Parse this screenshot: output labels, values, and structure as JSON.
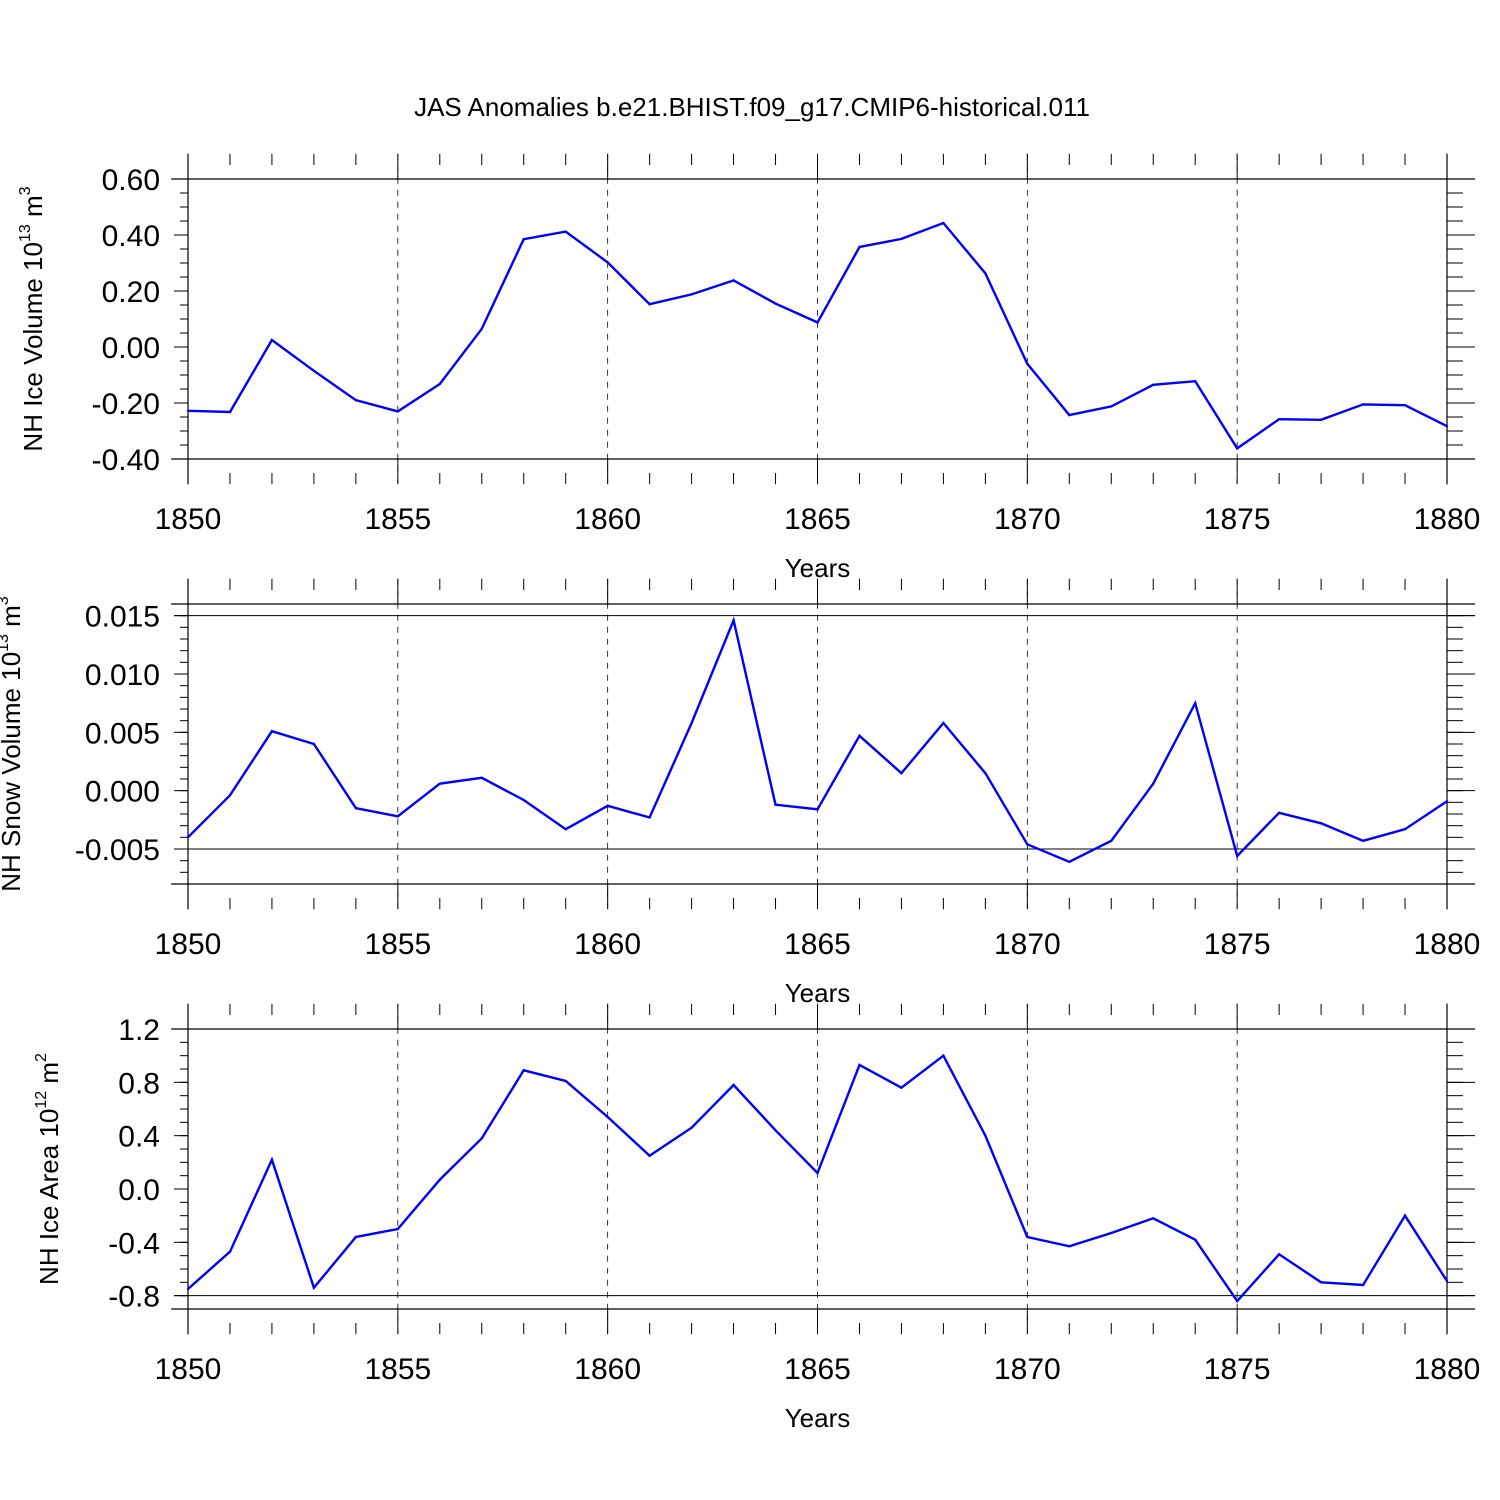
{
  "title": "JAS Anomalies b.e21.BHIST.f09_g17.CMIP6-historical.011",
  "colors": {
    "line": "#0000ff",
    "axis": "#000000",
    "background": "#ffffff"
  },
  "chart_data": [
    {
      "type": "line",
      "title": "JAS Anomalies b.e21.BHIST.f09_g17.CMIP6-historical.011",
      "ylabel": {
        "text": "NH Ice Volume 10",
        "sup": "13",
        "text2": " m",
        "sup2": "3"
      },
      "xlabel": "Years",
      "xlim": [
        1850,
        1880
      ],
      "ylim": [
        -0.4,
        0.6
      ],
      "x_ticks": [
        1850,
        1855,
        1860,
        1865,
        1870,
        1875,
        1880
      ],
      "x_tick_labels": [
        "1850",
        "1855",
        "1860",
        "1865",
        "1870",
        "1875",
        "1880"
      ],
      "y_ticks": [
        -0.4,
        -0.2,
        0.0,
        0.2,
        0.4,
        0.6
      ],
      "y_tick_labels": [
        "-0.40",
        "-0.20",
        "0.00",
        "0.20",
        "0.40",
        "0.60"
      ],
      "y_minor_step": 0.05,
      "x": [
        1850,
        1851,
        1852,
        1853,
        1854,
        1855,
        1856,
        1857,
        1858,
        1859,
        1860,
        1861,
        1862,
        1863,
        1864,
        1865,
        1866,
        1867,
        1868,
        1869,
        1870,
        1871,
        1872,
        1873,
        1874,
        1875,
        1876,
        1877,
        1878,
        1879,
        1880
      ],
      "series": [
        {
          "name": "NH Ice Volume",
          "values": [
            -0.228,
            -0.232,
            0.025,
            -0.085,
            -0.19,
            -0.23,
            -0.132,
            0.065,
            0.385,
            0.412,
            0.302,
            0.153,
            0.188,
            0.238,
            0.155,
            0.088,
            0.357,
            0.386,
            0.443,
            0.263,
            -0.06,
            -0.243,
            -0.212,
            -0.135,
            -0.122,
            -0.362,
            -0.258,
            -0.26,
            -0.205,
            -0.208,
            -0.283
          ]
        }
      ]
    },
    {
      "type": "line",
      "ylabel": {
        "text": "NH Snow Volume 10",
        "sup": "13",
        "text2": " m",
        "sup2": "3"
      },
      "xlabel": "Years",
      "xlim": [
        1850,
        1880
      ],
      "ylim": [
        -0.008,
        0.016
      ],
      "x_ticks": [
        1850,
        1855,
        1860,
        1865,
        1870,
        1875,
        1880
      ],
      "x_tick_labels": [
        "1850",
        "1855",
        "1860",
        "1865",
        "1870",
        "1875",
        "1880"
      ],
      "y_ticks": [
        -0.005,
        0.0,
        0.005,
        0.01,
        0.015
      ],
      "y_tick_labels": [
        "-0.005",
        "0.000",
        "0.005",
        "0.010",
        "0.015"
      ],
      "y_minor_step": 0.001,
      "x": [
        1850,
        1851,
        1852,
        1853,
        1854,
        1855,
        1856,
        1857,
        1858,
        1859,
        1860,
        1861,
        1862,
        1863,
        1864,
        1865,
        1866,
        1867,
        1868,
        1869,
        1870,
        1871,
        1872,
        1873,
        1874,
        1875,
        1876,
        1877,
        1878,
        1879,
        1880
      ],
      "series": [
        {
          "name": "NH Snow Volume",
          "values": [
            -0.004,
            -0.0004,
            0.0051,
            0.004,
            -0.0015,
            -0.0022,
            0.0006,
            0.0011,
            -0.0008,
            -0.0033,
            -0.0013,
            -0.0023,
            0.0058,
            0.0146,
            -0.0012,
            -0.0016,
            0.0047,
            0.0015,
            0.0058,
            0.0015,
            -0.0046,
            -0.0061,
            -0.0043,
            0.0006,
            0.0075,
            -0.0056,
            -0.0019,
            -0.0028,
            -0.0043,
            -0.0033,
            -0.0009
          ]
        }
      ]
    },
    {
      "type": "line",
      "ylabel": {
        "text": "NH Ice Area 10",
        "sup": "12",
        "text2": " m",
        "sup2": "2"
      },
      "xlabel": "Years",
      "xlim": [
        1850,
        1880
      ],
      "ylim": [
        -0.9,
        1.2
      ],
      "x_ticks": [
        1850,
        1855,
        1860,
        1865,
        1870,
        1875,
        1880
      ],
      "x_tick_labels": [
        "1850",
        "1855",
        "1860",
        "1865",
        "1870",
        "1875",
        "1880"
      ],
      "y_ticks": [
        -0.8,
        -0.4,
        0.0,
        0.4,
        0.8,
        1.2
      ],
      "y_tick_labels": [
        "-0.8",
        "-0.4",
        "0.0",
        "0.4",
        "0.8",
        "1.2"
      ],
      "y_minor_step": 0.1,
      "x": [
        1850,
        1851,
        1852,
        1853,
        1854,
        1855,
        1856,
        1857,
        1858,
        1859,
        1860,
        1861,
        1862,
        1863,
        1864,
        1865,
        1866,
        1867,
        1868,
        1869,
        1870,
        1871,
        1872,
        1873,
        1874,
        1875,
        1876,
        1877,
        1878,
        1879,
        1880
      ],
      "series": [
        {
          "name": "NH Ice Area",
          "values": [
            -0.75,
            -0.47,
            0.22,
            -0.74,
            -0.36,
            -0.3,
            0.07,
            0.38,
            0.89,
            0.81,
            0.54,
            0.25,
            0.46,
            0.78,
            0.44,
            0.12,
            0.93,
            0.76,
            1.0,
            0.4,
            -0.36,
            -0.43,
            -0.33,
            -0.22,
            -0.38,
            -0.84,
            -0.49,
            -0.7,
            -0.72,
            -0.2,
            -0.69
          ]
        }
      ]
    }
  ]
}
